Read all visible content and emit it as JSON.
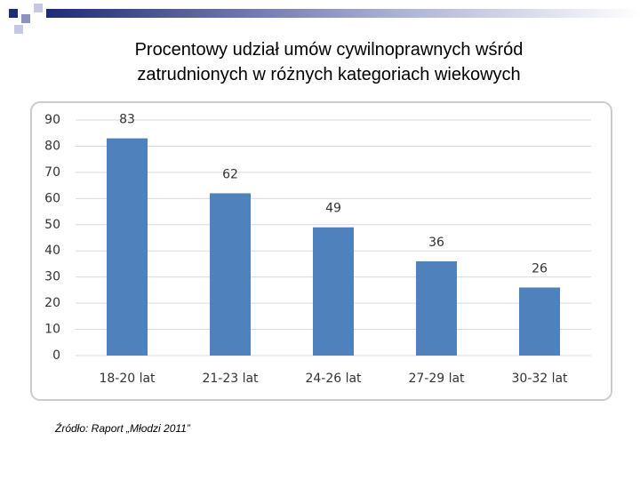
{
  "chart_data": {
    "type": "bar",
    "title": "Procentowy udział umów cywilnoprawnych wśród zatrudnionych w różnych kategoriach wiekowych",
    "categories": [
      "18-20 lat",
      "21-23 lat",
      "24-26 lat",
      "27-29 lat",
      "30-32 lat"
    ],
    "values": [
      83,
      62,
      49,
      36,
      26
    ],
    "color": "#4f81bd",
    "ylim": [
      0,
      90
    ],
    "yticks": [
      0,
      10,
      20,
      30,
      40,
      50,
      60,
      70,
      80,
      90
    ],
    "grid": true,
    "source": "Źródło: Raport „Młodzi 2011”"
  }
}
